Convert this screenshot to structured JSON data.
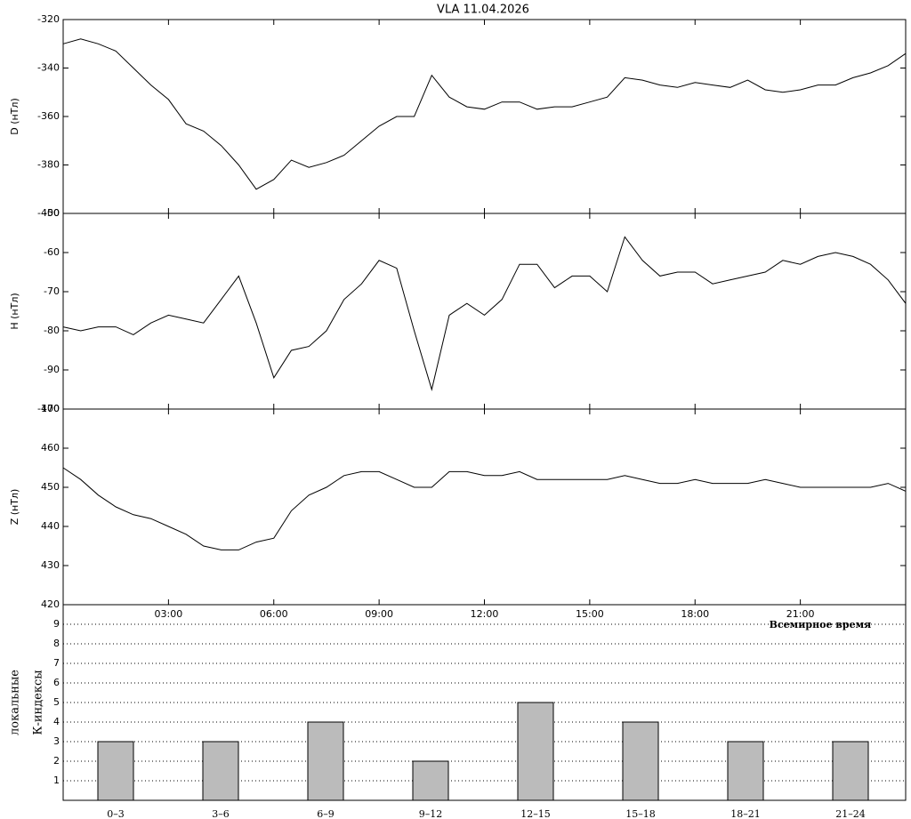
{
  "chart_data": [
    {
      "type": "line",
      "title": "VLA   11.04.2026",
      "ylabel": "D (нТл)",
      "color": "#000000",
      "x": [
        0,
        0.5,
        1,
        1.5,
        2,
        2.5,
        3,
        3.5,
        4,
        4.5,
        5,
        5.5,
        6,
        6.5,
        7,
        7.5,
        8,
        8.5,
        9,
        9.5,
        10,
        10.5,
        11,
        11.5,
        12,
        12.5,
        13,
        13.5,
        14,
        14.5,
        15,
        15.5,
        16,
        16.5,
        17,
        17.5,
        18,
        18.5,
        19,
        19.5,
        20,
        20.5,
        21,
        21.5,
        22,
        22.5,
        23,
        23.5,
        24
      ],
      "values": [
        -330,
        -328,
        -330,
        -333,
        -340,
        -347,
        -353,
        -363,
        -366,
        -372,
        -380,
        -390,
        -386,
        -378,
        -381,
        -379,
        -376,
        -370,
        -364,
        -360,
        -360,
        -343,
        -352,
        -356,
        -357,
        -354,
        -354,
        -357,
        -356,
        -356,
        -354,
        -352,
        -344,
        -345,
        -347,
        -348,
        -346,
        -347,
        -348,
        -345,
        -349,
        -350,
        -349,
        -347,
        -347,
        -344,
        -342,
        -339,
        -334
      ],
      "xlim": [
        0,
        24
      ],
      "xticks": [
        3,
        6,
        9,
        12,
        15,
        18,
        21
      ],
      "ylim": [
        -400,
        -320
      ],
      "yticks": [
        -320,
        -340,
        -360,
        -380,
        -400
      ]
    },
    {
      "type": "line",
      "ylabel": "H (нТл)",
      "color": "#000000",
      "x": [
        0,
        0.5,
        1,
        1.5,
        2,
        2.5,
        3,
        3.5,
        4,
        4.5,
        5,
        5.5,
        6,
        6.5,
        7,
        7.5,
        8,
        8.5,
        9,
        9.5,
        10,
        10.5,
        11,
        11.5,
        12,
        12.5,
        13,
        13.5,
        14,
        14.5,
        15,
        15.5,
        16,
        16.5,
        17,
        17.5,
        18,
        18.5,
        19,
        19.5,
        20,
        20.5,
        21,
        21.5,
        22,
        22.5,
        23,
        23.5,
        24
      ],
      "values": [
        -79,
        -80,
        -79,
        -79,
        -81,
        -78,
        -76,
        -77,
        -78,
        -72,
        -66,
        -78,
        -92,
        -85,
        -84,
        -80,
        -72,
        -68,
        -62,
        -64,
        -80,
        -95,
        -76,
        -73,
        -76,
        -72,
        -63,
        -63,
        -69,
        -66,
        -66,
        -70,
        -56,
        -62,
        -66,
        -65,
        -65,
        -68,
        -67,
        -66,
        -65,
        -62,
        -63,
        -61,
        -60,
        -61,
        -63,
        -67,
        -73
      ],
      "xlim": [
        0,
        24
      ],
      "xticks": [
        3,
        6,
        9,
        12,
        15,
        18,
        21
      ],
      "ylim": [
        -100,
        -50
      ],
      "yticks": [
        -50,
        -60,
        -70,
        -80,
        -90,
        -100
      ]
    },
    {
      "type": "line",
      "ylabel": "Z (нТл)",
      "xlabel": "Всемирное время",
      "color": "#000000",
      "x": [
        0,
        0.5,
        1,
        1.5,
        2,
        2.5,
        3,
        3.5,
        4,
        4.5,
        5,
        5.5,
        6,
        6.5,
        7,
        7.5,
        8,
        8.5,
        9,
        9.5,
        10,
        10.5,
        11,
        11.5,
        12,
        12.5,
        13,
        13.5,
        14,
        14.5,
        15,
        15.5,
        16,
        16.5,
        17,
        17.5,
        18,
        18.5,
        19,
        19.5,
        20,
        20.5,
        21,
        21.5,
        22,
        22.5,
        23,
        23.5,
        24
      ],
      "values": [
        455,
        452,
        448,
        445,
        443,
        442,
        440,
        438,
        435,
        434,
        434,
        436,
        437,
        444,
        448,
        450,
        453,
        454,
        454,
        452,
        450,
        450,
        454,
        454,
        453,
        453,
        454,
        452,
        452,
        452,
        452,
        452,
        453,
        452,
        451,
        451,
        452,
        451,
        451,
        451,
        452,
        451,
        450,
        450,
        450,
        450,
        450,
        451,
        449
      ],
      "xlim": [
        0,
        24
      ],
      "xticks": [
        {
          "value": 3,
          "label": "03:00"
        },
        {
          "value": 6,
          "label": "06:00"
        },
        {
          "value": 9,
          "label": "09:00"
        },
        {
          "value": 12,
          "label": "12:00"
        },
        {
          "value": 15,
          "label": "15:00"
        },
        {
          "value": 18,
          "label": "18:00"
        },
        {
          "value": 21,
          "label": "21:00"
        }
      ],
      "ylim": [
        420,
        470
      ],
      "yticks": [
        420,
        430,
        440,
        450,
        460,
        470
      ]
    },
    {
      "type": "bar",
      "ylabel": [
        "локальные",
        "К-индексы"
      ],
      "color": "#bbbbbb",
      "grid": true,
      "categories": [
        "0–3",
        "3–6",
        "6–9",
        "9–12",
        "12–15",
        "15–18",
        "18–21",
        "21–24"
      ],
      "values": [
        3,
        3,
        4,
        2,
        5,
        4,
        3,
        3
      ],
      "ylim": [
        0,
        10
      ],
      "yticks": [
        1,
        2,
        3,
        4,
        5,
        6,
        7,
        8,
        9
      ]
    }
  ]
}
